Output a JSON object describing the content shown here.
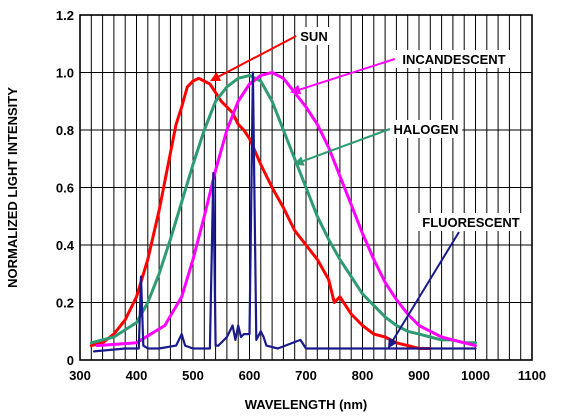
{
  "chart_data": {
    "type": "line",
    "title": "",
    "xlabel": "WAVELENGTH (nm)",
    "ylabel": "NORMALIZED LIGHT INTENSITY",
    "xlim": [
      300,
      1100
    ],
    "ylim": [
      0,
      1.2
    ],
    "xticks": [
      "300",
      "400",
      "500",
      "600",
      "700",
      "800",
      "900",
      "1000",
      "1100"
    ],
    "yticks": [
      "0",
      "0.2",
      "0.4",
      "0.6",
      "0.8",
      "1.0",
      "1.2"
    ],
    "grid": "vertical every 20 nm, horizontal every 0.2",
    "legend": "none (curves labeled with arrows)",
    "series": [
      {
        "name": "SUN",
        "color": "#ff0000",
        "x": [
          320,
          340,
          360,
          380,
          400,
          420,
          440,
          460,
          470,
          480,
          490,
          500,
          510,
          520,
          530,
          540,
          550,
          560,
          570,
          580,
          590,
          600,
          620,
          640,
          660,
          680,
          700,
          720,
          740,
          750,
          760,
          780,
          800,
          820,
          840,
          860,
          880,
          900,
          920
        ],
        "y": [
          0.05,
          0.06,
          0.09,
          0.14,
          0.22,
          0.35,
          0.52,
          0.72,
          0.82,
          0.88,
          0.95,
          0.97,
          0.98,
          0.97,
          0.96,
          0.93,
          0.9,
          0.88,
          0.86,
          0.82,
          0.8,
          0.77,
          0.68,
          0.6,
          0.53,
          0.45,
          0.4,
          0.35,
          0.28,
          0.2,
          0.22,
          0.16,
          0.12,
          0.09,
          0.08,
          0.06,
          0.05,
          0.04,
          0.04
        ]
      },
      {
        "name": "INCANDESCENT",
        "color": "#ff00ff",
        "x": [
          330,
          400,
          450,
          480,
          500,
          520,
          540,
          560,
          580,
          600,
          620,
          640,
          660,
          680,
          700,
          720,
          740,
          760,
          780,
          800,
          820,
          840,
          860,
          880,
          900,
          920,
          940,
          960,
          980,
          1000
        ],
        "y": [
          0.05,
          0.06,
          0.12,
          0.22,
          0.35,
          0.5,
          0.66,
          0.8,
          0.9,
          0.96,
          0.99,
          1.0,
          0.98,
          0.93,
          0.88,
          0.82,
          0.74,
          0.64,
          0.54,
          0.44,
          0.35,
          0.27,
          0.21,
          0.16,
          0.12,
          0.1,
          0.08,
          0.07,
          0.06,
          0.05
        ]
      },
      {
        "name": "HALOGEN",
        "color": "#2e9b72",
        "x": [
          320,
          360,
          400,
          420,
          440,
          460,
          480,
          500,
          520,
          540,
          560,
          580,
          600,
          620,
          640,
          660,
          680,
          700,
          720,
          740,
          760,
          780,
          800,
          820,
          840,
          860,
          880,
          900,
          920,
          940,
          960,
          980,
          1000
        ],
        "y": [
          0.06,
          0.08,
          0.13,
          0.2,
          0.3,
          0.42,
          0.55,
          0.68,
          0.8,
          0.9,
          0.95,
          0.98,
          0.99,
          0.97,
          0.9,
          0.8,
          0.7,
          0.6,
          0.5,
          0.42,
          0.35,
          0.29,
          0.23,
          0.19,
          0.15,
          0.12,
          0.1,
          0.09,
          0.08,
          0.07,
          0.07,
          0.06,
          0.06
        ]
      },
      {
        "name": "FLUORESCENT",
        "color": "#1a1a8c",
        "x": [
          325,
          380,
          404,
          408,
          412,
          420,
          440,
          470,
          480,
          486,
          500,
          530,
          536,
          540,
          545,
          560,
          570,
          575,
          580,
          585,
          590,
          600,
          606,
          612,
          620,
          625,
          630,
          650,
          690,
          700,
          720,
          760,
          800,
          850,
          900,
          950,
          1000
        ],
        "y": [
          0.03,
          0.04,
          0.04,
          0.29,
          0.05,
          0.04,
          0.04,
          0.05,
          0.09,
          0.05,
          0.04,
          0.04,
          0.65,
          0.05,
          0.05,
          0.08,
          0.12,
          0.07,
          0.12,
          0.08,
          0.09,
          0.09,
          1.0,
          0.07,
          0.1,
          0.08,
          0.05,
          0.04,
          0.07,
          0.04,
          0.04,
          0.04,
          0.04,
          0.04,
          0.04,
          0.04,
          0.04
        ]
      }
    ],
    "annotations": [
      {
        "text": "SUN",
        "series": "SUN",
        "arrow_to": [
          530,
          0.97
        ]
      },
      {
        "text": "INCANDESCENT",
        "series": "INCANDESCENT",
        "arrow_to": [
          672,
          0.93
        ]
      },
      {
        "text": "HALOGEN",
        "series": "HALOGEN",
        "arrow_to": [
          678,
          0.68
        ]
      },
      {
        "text": "FLUORESCENT",
        "series": "FLUORESCENT",
        "arrow_to": [
          845,
          0.04
        ]
      }
    ]
  }
}
